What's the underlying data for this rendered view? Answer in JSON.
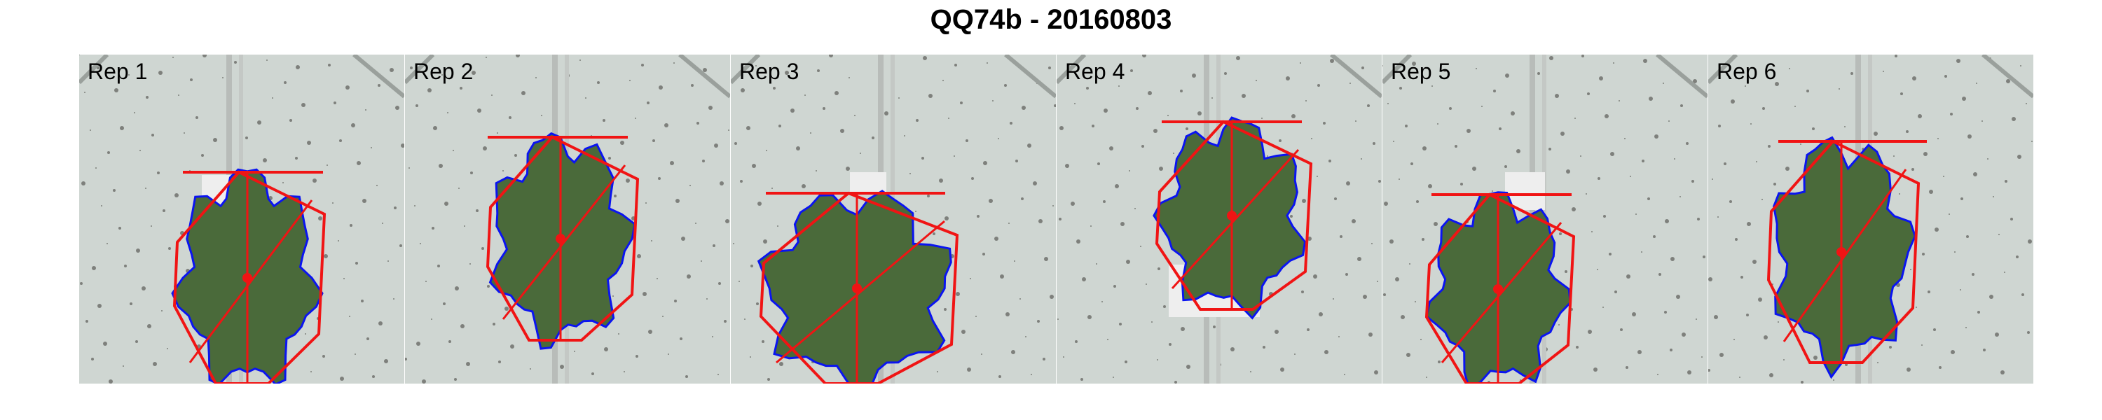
{
  "figure": {
    "title": "QQ74b - 20160803",
    "colors": {
      "background": "#cfd6d2",
      "leaf": "#4a6a3a",
      "contour": "#0a14f0",
      "hull": "#f01414"
    }
  },
  "panels": [
    {
      "label": "Rep 1",
      "variant": 0
    },
    {
      "label": "Rep 2",
      "variant": 1
    },
    {
      "label": "Rep 3",
      "variant": 2
    },
    {
      "label": "Rep 4",
      "variant": 3
    },
    {
      "label": "Rep 5",
      "variant": 4
    },
    {
      "label": "Rep 6",
      "variant": 5
    }
  ]
}
